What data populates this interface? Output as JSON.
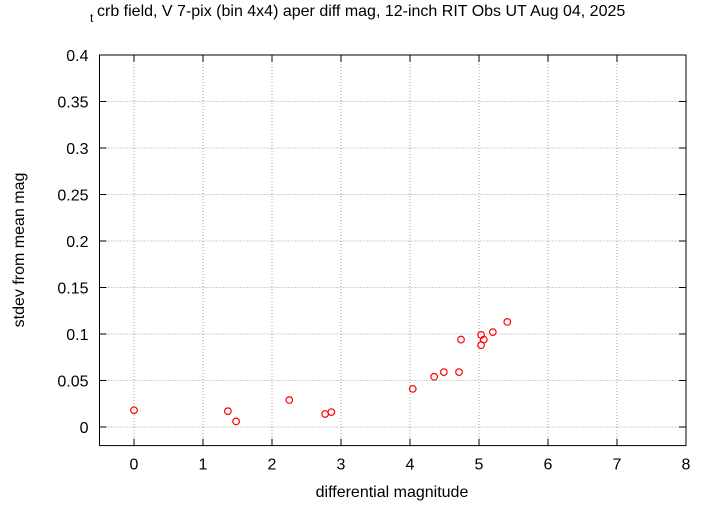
{
  "chart_data": {
    "type": "scatter",
    "title_subscript": "t",
    "title": "crb field, V 7-pix (bin 4x4) aper diff mag,  12-inch RIT Obs UT Aug 04, 2025",
    "x_label": "differential magnitude",
    "y_label": "stdev from mean mag",
    "x": [
      0,
      1.36,
      1.48,
      2.25,
      2.77,
      2.86,
      4.04,
      4.35,
      4.49,
      4.71,
      4.74,
      5.03,
      5.03,
      5.07,
      5.2,
      5.41
    ],
    "values": [
      0.018,
      0.017,
      0.006,
      0.029,
      0.014,
      0.016,
      0.041,
      0.054,
      0.059,
      0.059,
      0.094,
      0.099,
      0.088,
      0.094,
      0.102,
      0.113
    ],
    "color": "#ff0000",
    "xlim": [
      -0.5,
      8
    ],
    "ylim": [
      -0.02,
      0.4
    ],
    "xticks": [
      0,
      1,
      2,
      3,
      4,
      5,
      6,
      7,
      8
    ],
    "yticks": [
      0,
      0.05,
      0.1,
      0.15,
      0.2,
      0.25,
      0.3,
      0.35,
      0.4
    ],
    "grid": true
  }
}
